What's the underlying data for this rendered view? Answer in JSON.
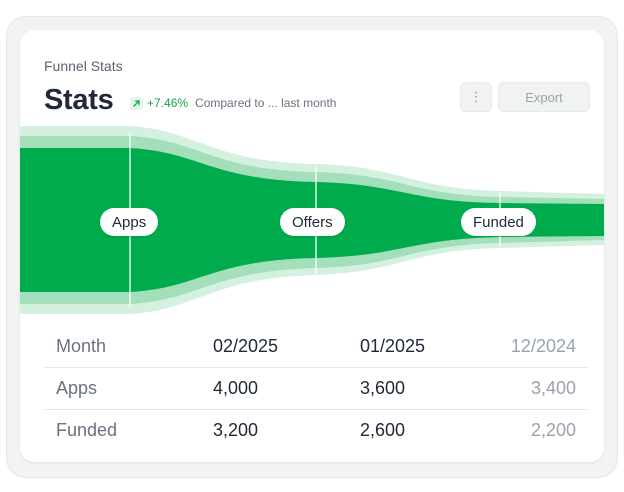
{
  "header": {
    "eyebrow": "Funnel Stats",
    "title": "Stats",
    "delta_percent": "+7.46%",
    "delta_compare": "Compared to ... last month",
    "more_label": "⋮",
    "export_label": "Export"
  },
  "funnel": {
    "stages": [
      "Apps",
      "Offers",
      "Funded"
    ],
    "colors": {
      "main": "#00ab4e",
      "mid": "#a3dfbb",
      "light": "#d4f0df",
      "divider": "#ffffff"
    }
  },
  "table": {
    "header": [
      "Month",
      "02/2025",
      "01/2025",
      "12/2024"
    ],
    "rows": [
      [
        "Apps",
        "4,000",
        "3,600",
        "3,400"
      ],
      [
        "Funded",
        "3,200",
        "2,600",
        "2,200"
      ]
    ]
  }
}
